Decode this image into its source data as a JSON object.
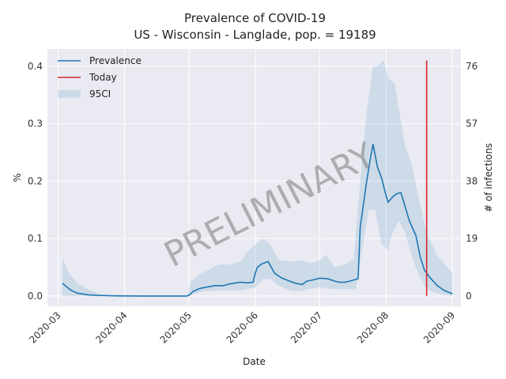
{
  "chart_data": {
    "type": "line",
    "title": "Prevalence of COVID-19",
    "subtitle": "US - Wisconsin - Langlade, pop. = 19189",
    "xlabel": "Date",
    "ylabel": "%",
    "ylabel_right": "# of infections",
    "x_range": [
      "2020-02-25",
      "2020-09-05"
    ],
    "ylim": [
      -0.018,
      0.43
    ],
    "x_ticks": [
      "2020-03-01",
      "2020-04-01",
      "2020-05-01",
      "2020-06-01",
      "2020-07-01",
      "2020-08-01",
      "2020-09-01"
    ],
    "x_tick_labels": [
      "2020-03",
      "2020-04",
      "2020-05",
      "2020-06",
      "2020-07",
      "2020-08",
      "2020-09"
    ],
    "y_ticks": [
      0.0,
      0.1,
      0.2,
      0.3,
      0.4
    ],
    "y_tick_labels": [
      "0.0",
      "0.1",
      "0.2",
      "0.3",
      "0.4"
    ],
    "y_right_ticks": [
      0,
      19,
      38,
      57,
      76
    ],
    "y_right_tick_labels": [
      "0",
      "19",
      "38",
      "57",
      "76"
    ],
    "grid": true,
    "legend_position": "top-left",
    "watermark": "PRELIMINARY",
    "today": "2020-08-20",
    "today_range": [
      0.0,
      0.41
    ],
    "series": [
      {
        "name": "Prevalence",
        "color": "#1f77b4",
        "points": [
          [
            "2020-03-03",
            0.022
          ],
          [
            "2020-03-05",
            0.016
          ],
          [
            "2020-03-07",
            0.01
          ],
          [
            "2020-03-10",
            0.005
          ],
          [
            "2020-03-15",
            0.002
          ],
          [
            "2020-03-20",
            0.001
          ],
          [
            "2020-03-28",
            0.0003
          ],
          [
            "2020-04-10",
            0.0
          ],
          [
            "2020-04-30",
            0.0
          ],
          [
            "2020-05-01",
            0.001
          ],
          [
            "2020-05-03",
            0.008
          ],
          [
            "2020-05-06",
            0.013
          ],
          [
            "2020-05-10",
            0.016
          ],
          [
            "2020-05-13",
            0.018
          ],
          [
            "2020-05-17",
            0.018
          ],
          [
            "2020-05-20",
            0.021
          ],
          [
            "2020-05-25",
            0.024
          ],
          [
            "2020-05-28",
            0.023
          ],
          [
            "2020-05-31",
            0.024
          ],
          [
            "2020-06-01",
            0.04
          ],
          [
            "2020-06-02",
            0.05
          ],
          [
            "2020-06-04",
            0.056
          ],
          [
            "2020-06-07",
            0.06
          ],
          [
            "2020-06-10",
            0.04
          ],
          [
            "2020-06-13",
            0.032
          ],
          [
            "2020-06-17",
            0.026
          ],
          [
            "2020-06-20",
            0.022
          ],
          [
            "2020-06-23",
            0.02
          ],
          [
            "2020-06-25",
            0.026
          ],
          [
            "2020-06-28",
            0.028
          ],
          [
            "2020-07-01",
            0.031
          ],
          [
            "2020-07-05",
            0.03
          ],
          [
            "2020-07-08",
            0.026
          ],
          [
            "2020-07-10",
            0.024
          ],
          [
            "2020-07-13",
            0.024
          ],
          [
            "2020-07-15",
            0.026
          ],
          [
            "2020-07-19",
            0.03
          ],
          [
            "2020-07-20",
            0.12
          ],
          [
            "2020-07-23",
            0.2
          ],
          [
            "2020-07-25",
            0.245
          ],
          [
            "2020-07-26",
            0.264
          ],
          [
            "2020-07-28",
            0.225
          ],
          [
            "2020-07-30",
            0.205
          ],
          [
            "2020-08-01",
            0.175
          ],
          [
            "2020-08-02",
            0.163
          ],
          [
            "2020-08-04",
            0.172
          ],
          [
            "2020-08-06",
            0.178
          ],
          [
            "2020-08-08",
            0.18
          ],
          [
            "2020-08-10",
            0.155
          ],
          [
            "2020-08-12",
            0.13
          ],
          [
            "2020-08-15",
            0.105
          ],
          [
            "2020-08-17",
            0.068
          ],
          [
            "2020-08-19",
            0.045
          ],
          [
            "2020-08-22",
            0.03
          ],
          [
            "2020-08-25",
            0.018
          ],
          [
            "2020-08-28",
            0.01
          ],
          [
            "2020-09-01",
            0.004
          ]
        ]
      }
    ],
    "band": {
      "name": "95CI",
      "color": "#1f77b4",
      "opacity": 0.14,
      "upper": [
        [
          "2020-03-03",
          0.065
        ],
        [
          "2020-03-06",
          0.04
        ],
        [
          "2020-03-10",
          0.022
        ],
        [
          "2020-03-15",
          0.012
        ],
        [
          "2020-03-20",
          0.004
        ],
        [
          "2020-03-28",
          0.001
        ],
        [
          "2020-04-10",
          0.0
        ],
        [
          "2020-04-30",
          0.0
        ],
        [
          "2020-05-02",
          0.025
        ],
        [
          "2020-05-06",
          0.038
        ],
        [
          "2020-05-10",
          0.045
        ],
        [
          "2020-05-15",
          0.055
        ],
        [
          "2020-05-20",
          0.055
        ],
        [
          "2020-05-25",
          0.06
        ],
        [
          "2020-05-28",
          0.075
        ],
        [
          "2020-06-01",
          0.09
        ],
        [
          "2020-06-05",
          0.1
        ],
        [
          "2020-06-08",
          0.09
        ],
        [
          "2020-06-12",
          0.062
        ],
        [
          "2020-06-17",
          0.06
        ],
        [
          "2020-06-22",
          0.062
        ],
        [
          "2020-06-27",
          0.058
        ],
        [
          "2020-07-01",
          0.062
        ],
        [
          "2020-07-04",
          0.072
        ],
        [
          "2020-07-08",
          0.05
        ],
        [
          "2020-07-13",
          0.055
        ],
        [
          "2020-07-17",
          0.065
        ],
        [
          "2020-07-20",
          0.2
        ],
        [
          "2020-07-23",
          0.32
        ],
        [
          "2020-07-26",
          0.4
        ],
        [
          "2020-07-28",
          0.4
        ],
        [
          "2020-07-31",
          0.41
        ],
        [
          "2020-08-02",
          0.38
        ],
        [
          "2020-08-05",
          0.37
        ],
        [
          "2020-08-10",
          0.26
        ],
        [
          "2020-08-13",
          0.23
        ],
        [
          "2020-08-16",
          0.175
        ],
        [
          "2020-08-20",
          0.11
        ],
        [
          "2020-08-25",
          0.07
        ],
        [
          "2020-09-01",
          0.04
        ]
      ],
      "lower": [
        [
          "2020-03-03",
          0.0
        ],
        [
          "2020-05-01",
          0.0
        ],
        [
          "2020-05-03",
          0.004
        ],
        [
          "2020-05-08",
          0.008
        ],
        [
          "2020-05-15",
          0.01
        ],
        [
          "2020-05-25",
          0.01
        ],
        [
          "2020-06-01",
          0.015
        ],
        [
          "2020-06-05",
          0.03
        ],
        [
          "2020-06-08",
          0.03
        ],
        [
          "2020-06-12",
          0.018
        ],
        [
          "2020-06-17",
          0.01
        ],
        [
          "2020-06-22",
          0.008
        ],
        [
          "2020-06-25",
          0.012
        ],
        [
          "2020-07-01",
          0.015
        ],
        [
          "2020-07-08",
          0.012
        ],
        [
          "2020-07-13",
          0.012
        ],
        [
          "2020-07-18",
          0.012
        ],
        [
          "2020-07-20",
          0.06
        ],
        [
          "2020-07-24",
          0.15
        ],
        [
          "2020-07-27",
          0.15
        ],
        [
          "2020-07-30",
          0.09
        ],
        [
          "2020-08-02",
          0.08
        ],
        [
          "2020-08-04",
          0.11
        ],
        [
          "2020-08-07",
          0.13
        ],
        [
          "2020-08-10",
          0.11
        ],
        [
          "2020-08-13",
          0.07
        ],
        [
          "2020-08-16",
          0.04
        ],
        [
          "2020-08-19",
          0.018
        ],
        [
          "2020-08-22",
          0.008
        ],
        [
          "2020-08-27",
          0.003
        ],
        [
          "2020-09-01",
          0.0
        ]
      ]
    },
    "today_line": {
      "name": "Today",
      "color": "#d62728"
    }
  }
}
